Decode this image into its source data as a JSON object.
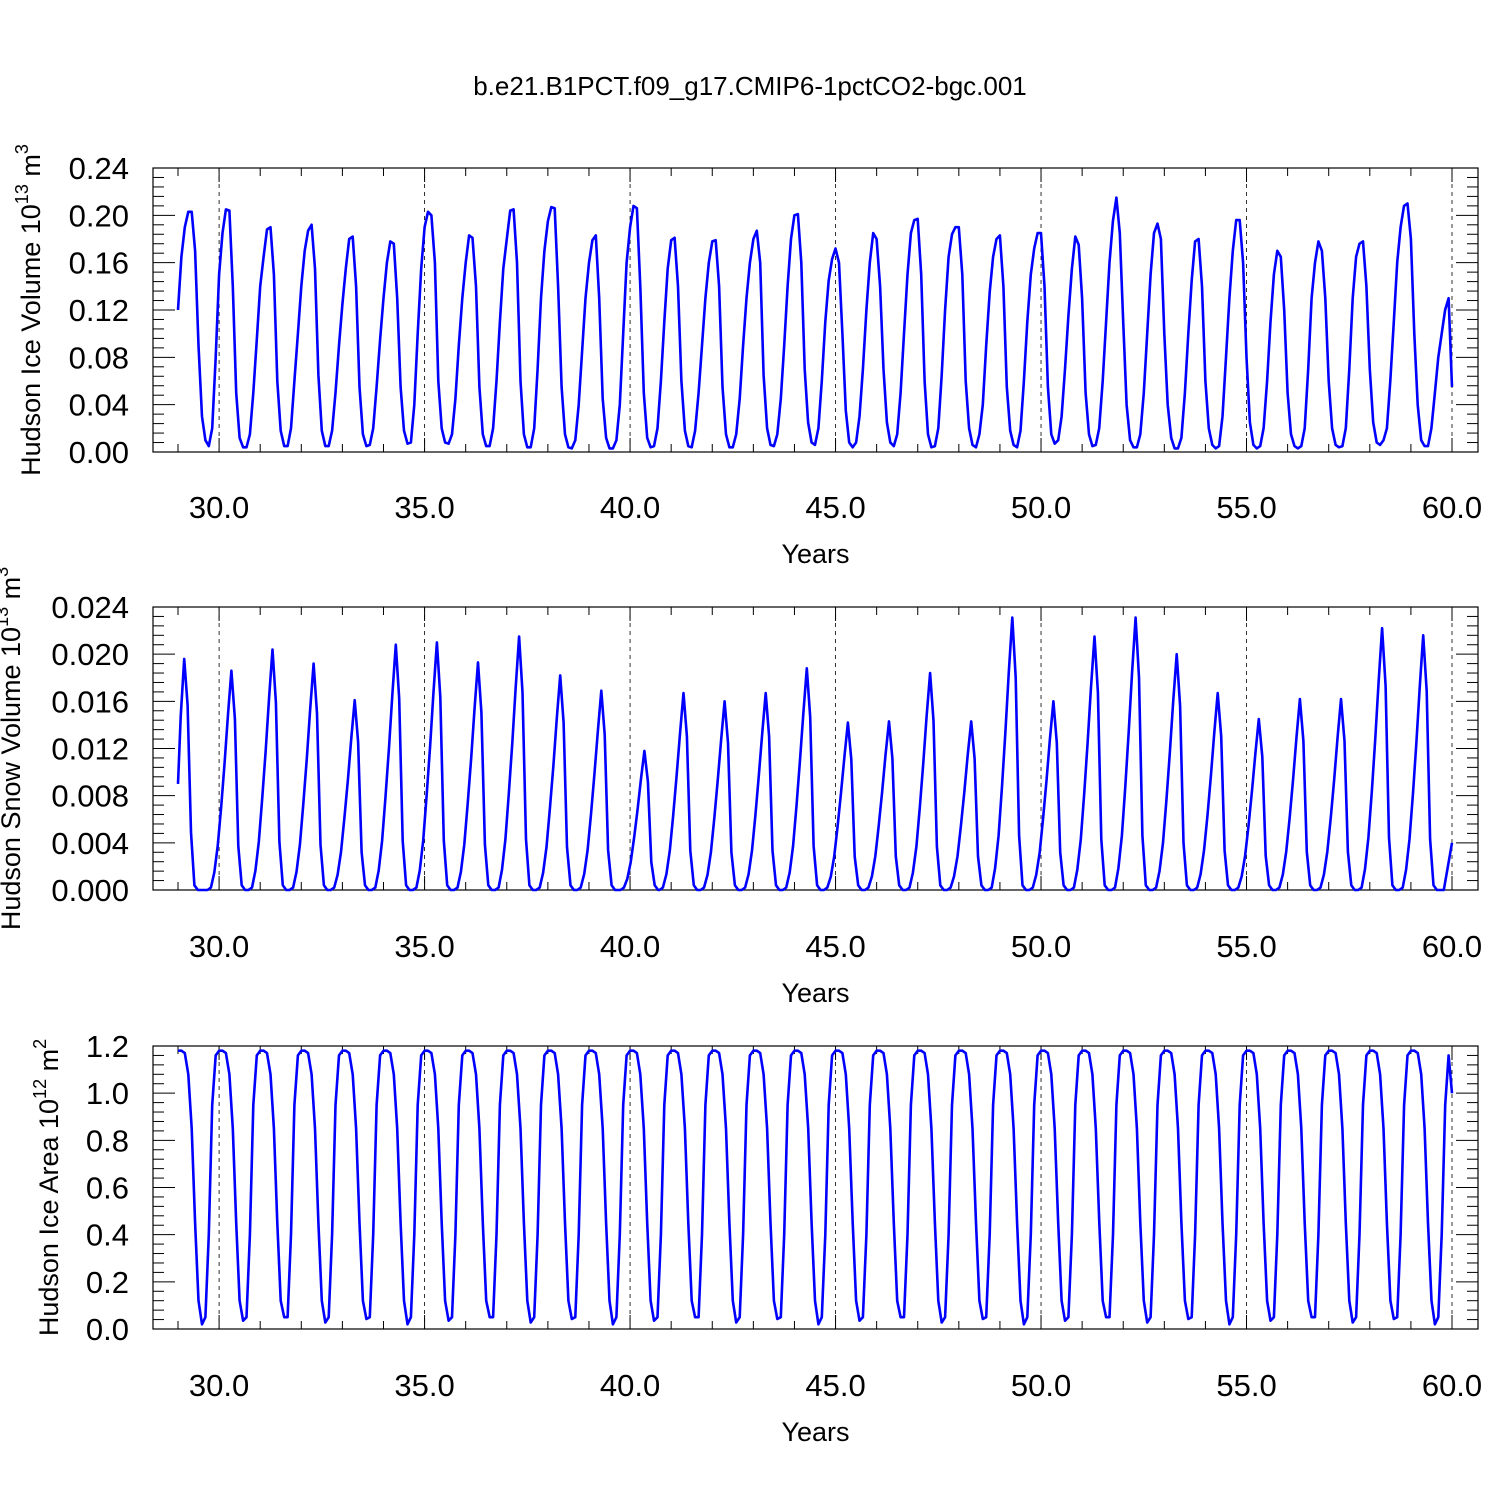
{
  "title": "b.e21.B1PCT.f09_g17.CMIP6-1pctCO2-bgc.001",
  "chart_data": [
    {
      "type": "line",
      "xlabel": "Years",
      "ylabel": "Hudson Ice Volume",
      "ylabel_scale": "10",
      "ylabel_exp": "13",
      "ylabel_unit": "m",
      "ylabel_unit_exp": "3",
      "xlim": [
        29.0,
        60.0
      ],
      "ylim": [
        0.0,
        0.24
      ],
      "xticks": [
        30.0,
        35.0,
        40.0,
        45.0,
        50.0,
        55.0,
        60.0
      ],
      "xtick_labels": [
        "30.0",
        "35.0",
        "40.0",
        "45.0",
        "50.0",
        "55.0",
        "60.0"
      ],
      "yticks": [
        0.0,
        0.04,
        0.08,
        0.12,
        0.16,
        0.2,
        0.24
      ],
      "ytick_labels": [
        "0.00",
        "0.04",
        "0.08",
        "0.12",
        "0.16",
        "0.20",
        "0.24"
      ],
      "grid": "dashed vertical at major x ticks",
      "color": "#0000ff",
      "series": [
        {
          "x_start": 29.0,
          "x_step": 0.083333,
          "values_per_year": [
            [
              0.12,
              0.165,
              0.19,
              0.203,
              0.203,
              0.17,
              0.09,
              0.03,
              0.01,
              0.005,
              0.02,
              0.08
            ],
            [
              0.15,
              0.185,
              0.205,
              0.204,
              0.14,
              0.05,
              0.012,
              0.004,
              0.004,
              0.015,
              0.05,
              0.095
            ],
            [
              0.14,
              0.165,
              0.188,
              0.19,
              0.15,
              0.06,
              0.018,
              0.005,
              0.005,
              0.02,
              0.06,
              0.1
            ],
            [
              0.14,
              0.17,
              0.187,
              0.192,
              0.155,
              0.065,
              0.018,
              0.005,
              0.005,
              0.018,
              0.05,
              0.09
            ],
            [
              0.125,
              0.155,
              0.18,
              0.182,
              0.14,
              0.055,
              0.015,
              0.005,
              0.006,
              0.02,
              0.055,
              0.095
            ],
            [
              0.13,
              0.16,
              0.178,
              0.176,
              0.13,
              0.055,
              0.018,
              0.007,
              0.008,
              0.04,
              0.1,
              0.155
            ],
            [
              0.19,
              0.203,
              0.2,
              0.16,
              0.06,
              0.02,
              0.008,
              0.007,
              0.015,
              0.045,
              0.09,
              0.13
            ],
            [
              0.16,
              0.183,
              0.181,
              0.14,
              0.055,
              0.015,
              0.005,
              0.005,
              0.02,
              0.06,
              0.11,
              0.155
            ],
            [
              0.18,
              0.204,
              0.205,
              0.16,
              0.06,
              0.015,
              0.004,
              0.004,
              0.02,
              0.07,
              0.13,
              0.17
            ],
            [
              0.195,
              0.207,
              0.206,
              0.14,
              0.055,
              0.015,
              0.004,
              0.003,
              0.01,
              0.04,
              0.085,
              0.13
            ],
            [
              0.16,
              0.179,
              0.183,
              0.13,
              0.045,
              0.012,
              0.003,
              0.003,
              0.01,
              0.04,
              0.1,
              0.16
            ],
            [
              0.19,
              0.208,
              0.206,
              0.14,
              0.05,
              0.012,
              0.004,
              0.005,
              0.02,
              0.06,
              0.11,
              0.155
            ],
            [
              0.179,
              0.181,
              0.14,
              0.06,
              0.018,
              0.005,
              0.004,
              0.018,
              0.05,
              0.09,
              0.13,
              0.16
            ],
            [
              0.178,
              0.179,
              0.14,
              0.055,
              0.015,
              0.004,
              0.004,
              0.015,
              0.045,
              0.09,
              0.13,
              0.16
            ],
            [
              0.18,
              0.187,
              0.16,
              0.065,
              0.02,
              0.006,
              0.005,
              0.015,
              0.045,
              0.09,
              0.14,
              0.18
            ],
            [
              0.2,
              0.201,
              0.16,
              0.07,
              0.025,
              0.008,
              0.006,
              0.02,
              0.06,
              0.11,
              0.145,
              0.163
            ],
            [
              0.172,
              0.16,
              0.1,
              0.035,
              0.008,
              0.004,
              0.008,
              0.03,
              0.07,
              0.12,
              0.16,
              0.185
            ],
            [
              0.18,
              0.14,
              0.07,
              0.025,
              0.008,
              0.005,
              0.015,
              0.05,
              0.1,
              0.15,
              0.185,
              0.196
            ],
            [
              0.197,
              0.15,
              0.06,
              0.015,
              0.004,
              0.005,
              0.02,
              0.065,
              0.12,
              0.165,
              0.184,
              0.19
            ],
            [
              0.19,
              0.15,
              0.06,
              0.02,
              0.006,
              0.004,
              0.015,
              0.04,
              0.09,
              0.135,
              0.165,
              0.18
            ],
            [
              0.183,
              0.14,
              0.055,
              0.018,
              0.006,
              0.004,
              0.018,
              0.06,
              0.11,
              0.15,
              0.172,
              0.185
            ],
            [
              0.185,
              0.14,
              0.055,
              0.015,
              0.007,
              0.01,
              0.03,
              0.07,
              0.115,
              0.155,
              0.182,
              0.175
            ],
            [
              0.13,
              0.05,
              0.015,
              0.005,
              0.006,
              0.02,
              0.06,
              0.11,
              0.16,
              0.195,
              0.215,
              0.185
            ],
            [
              0.11,
              0.04,
              0.01,
              0.004,
              0.004,
              0.015,
              0.05,
              0.1,
              0.15,
              0.185,
              0.193,
              0.18
            ],
            [
              0.1,
              0.04,
              0.012,
              0.003,
              0.003,
              0.012,
              0.05,
              0.1,
              0.145,
              0.178,
              0.18,
              0.14
            ],
            [
              0.06,
              0.02,
              0.006,
              0.003,
              0.005,
              0.03,
              0.08,
              0.13,
              0.17,
              0.196,
              0.196,
              0.16
            ],
            [
              0.08,
              0.025,
              0.006,
              0.003,
              0.005,
              0.02,
              0.06,
              0.11,
              0.15,
              0.17,
              0.165,
              0.12
            ],
            [
              0.05,
              0.015,
              0.005,
              0.003,
              0.005,
              0.02,
              0.07,
              0.13,
              0.16,
              0.178,
              0.17,
              0.13
            ],
            [
              0.06,
              0.02,
              0.006,
              0.004,
              0.005,
              0.02,
              0.07,
              0.13,
              0.165,
              0.176,
              0.178,
              0.14
            ],
            [
              0.07,
              0.025,
              0.008,
              0.006,
              0.01,
              0.02,
              0.06,
              0.11,
              0.16,
              0.19,
              0.208,
              0.21
            ],
            [
              0.18,
              0.1,
              0.04,
              0.01,
              0.005,
              0.005,
              0.02,
              0.05,
              0.08,
              0.1,
              0.12,
              0.13
            ],
            [
              0.055
            ]
          ]
        }
      ]
    },
    {
      "type": "line",
      "xlabel": "Years",
      "ylabel": "Hudson Snow Volume",
      "ylabel_scale": "10",
      "ylabel_exp": "13",
      "ylabel_unit": "m",
      "ylabel_unit_exp": "3",
      "xlim": [
        29.0,
        60.0
      ],
      "ylim": [
        0.0,
        0.024
      ],
      "xticks": [
        30.0,
        35.0,
        40.0,
        45.0,
        50.0,
        55.0,
        60.0
      ],
      "xtick_labels": [
        "30.0",
        "35.0",
        "40.0",
        "45.0",
        "50.0",
        "55.0",
        "60.0"
      ],
      "yticks": [
        0.0,
        0.004,
        0.008,
        0.012,
        0.016,
        0.02,
        0.024
      ],
      "ytick_labels": [
        "0.000",
        "0.004",
        "0.008",
        "0.012",
        "0.016",
        "0.020",
        "0.024"
      ],
      "grid": "dashed vertical at major x ticks",
      "color": "#0000ff",
      "series": [
        {
          "peaks": [
            [
              29.15,
              0.0196
            ],
            [
              30.3,
              0.0186
            ],
            [
              31.3,
              0.0204
            ],
            [
              32.3,
              0.0192
            ],
            [
              33.3,
              0.0161
            ],
            [
              34.3,
              0.0208
            ],
            [
              35.3,
              0.021
            ],
            [
              36.3,
              0.0193
            ],
            [
              37.3,
              0.0215
            ],
            [
              38.3,
              0.0182
            ],
            [
              39.3,
              0.0169
            ],
            [
              40.35,
              0.0118
            ],
            [
              41.3,
              0.0167
            ],
            [
              42.3,
              0.016
            ],
            [
              43.3,
              0.0167
            ],
            [
              44.3,
              0.0188
            ],
            [
              45.3,
              0.0142
            ],
            [
              46.3,
              0.0143
            ],
            [
              47.3,
              0.0184
            ],
            [
              48.3,
              0.0143
            ],
            [
              49.3,
              0.0231
            ],
            [
              50.3,
              0.016
            ],
            [
              51.3,
              0.0215
            ],
            [
              52.3,
              0.0231
            ],
            [
              53.3,
              0.02
            ],
            [
              54.3,
              0.0167
            ],
            [
              55.3,
              0.0145
            ],
            [
              56.3,
              0.0162
            ],
            [
              57.3,
              0.0162
            ],
            [
              58.3,
              0.0222
            ],
            [
              59.3,
              0.0216
            ]
          ],
          "y_start": 0.009,
          "y_end": 0.004,
          "trough": 0.0
        }
      ]
    },
    {
      "type": "line",
      "xlabel": "Years",
      "ylabel": "Hudson Ice Area",
      "ylabel_scale": "10",
      "ylabel_exp": "12",
      "ylabel_unit": "m",
      "ylabel_unit_exp": "2",
      "xlim": [
        29.0,
        60.0
      ],
      "ylim": [
        0.0,
        1.2
      ],
      "xticks": [
        30.0,
        35.0,
        40.0,
        45.0,
        50.0,
        55.0,
        60.0
      ],
      "xtick_labels": [
        "30.0",
        "35.0",
        "40.0",
        "45.0",
        "50.0",
        "55.0",
        "60.0"
      ],
      "yticks": [
        0.0,
        0.2,
        0.4,
        0.6,
        0.8,
        1.0,
        1.2
      ],
      "ytick_labels": [
        "0.0",
        "0.2",
        "0.4",
        "0.6",
        "0.8",
        "1.0",
        "1.2"
      ],
      "grid": "dashed vertical at major x ticks",
      "color": "#0000ff",
      "series": [
        {
          "annual_cycle": [
            1.18,
            1.18,
            1.17,
            1.08,
            0.85,
            0.45,
            0.12,
            0.03,
            0.05,
            0.4,
            0.95,
            1.16
          ],
          "trough_min": 0.02,
          "peak": 1.18,
          "y_end": 1.0
        }
      ]
    }
  ]
}
